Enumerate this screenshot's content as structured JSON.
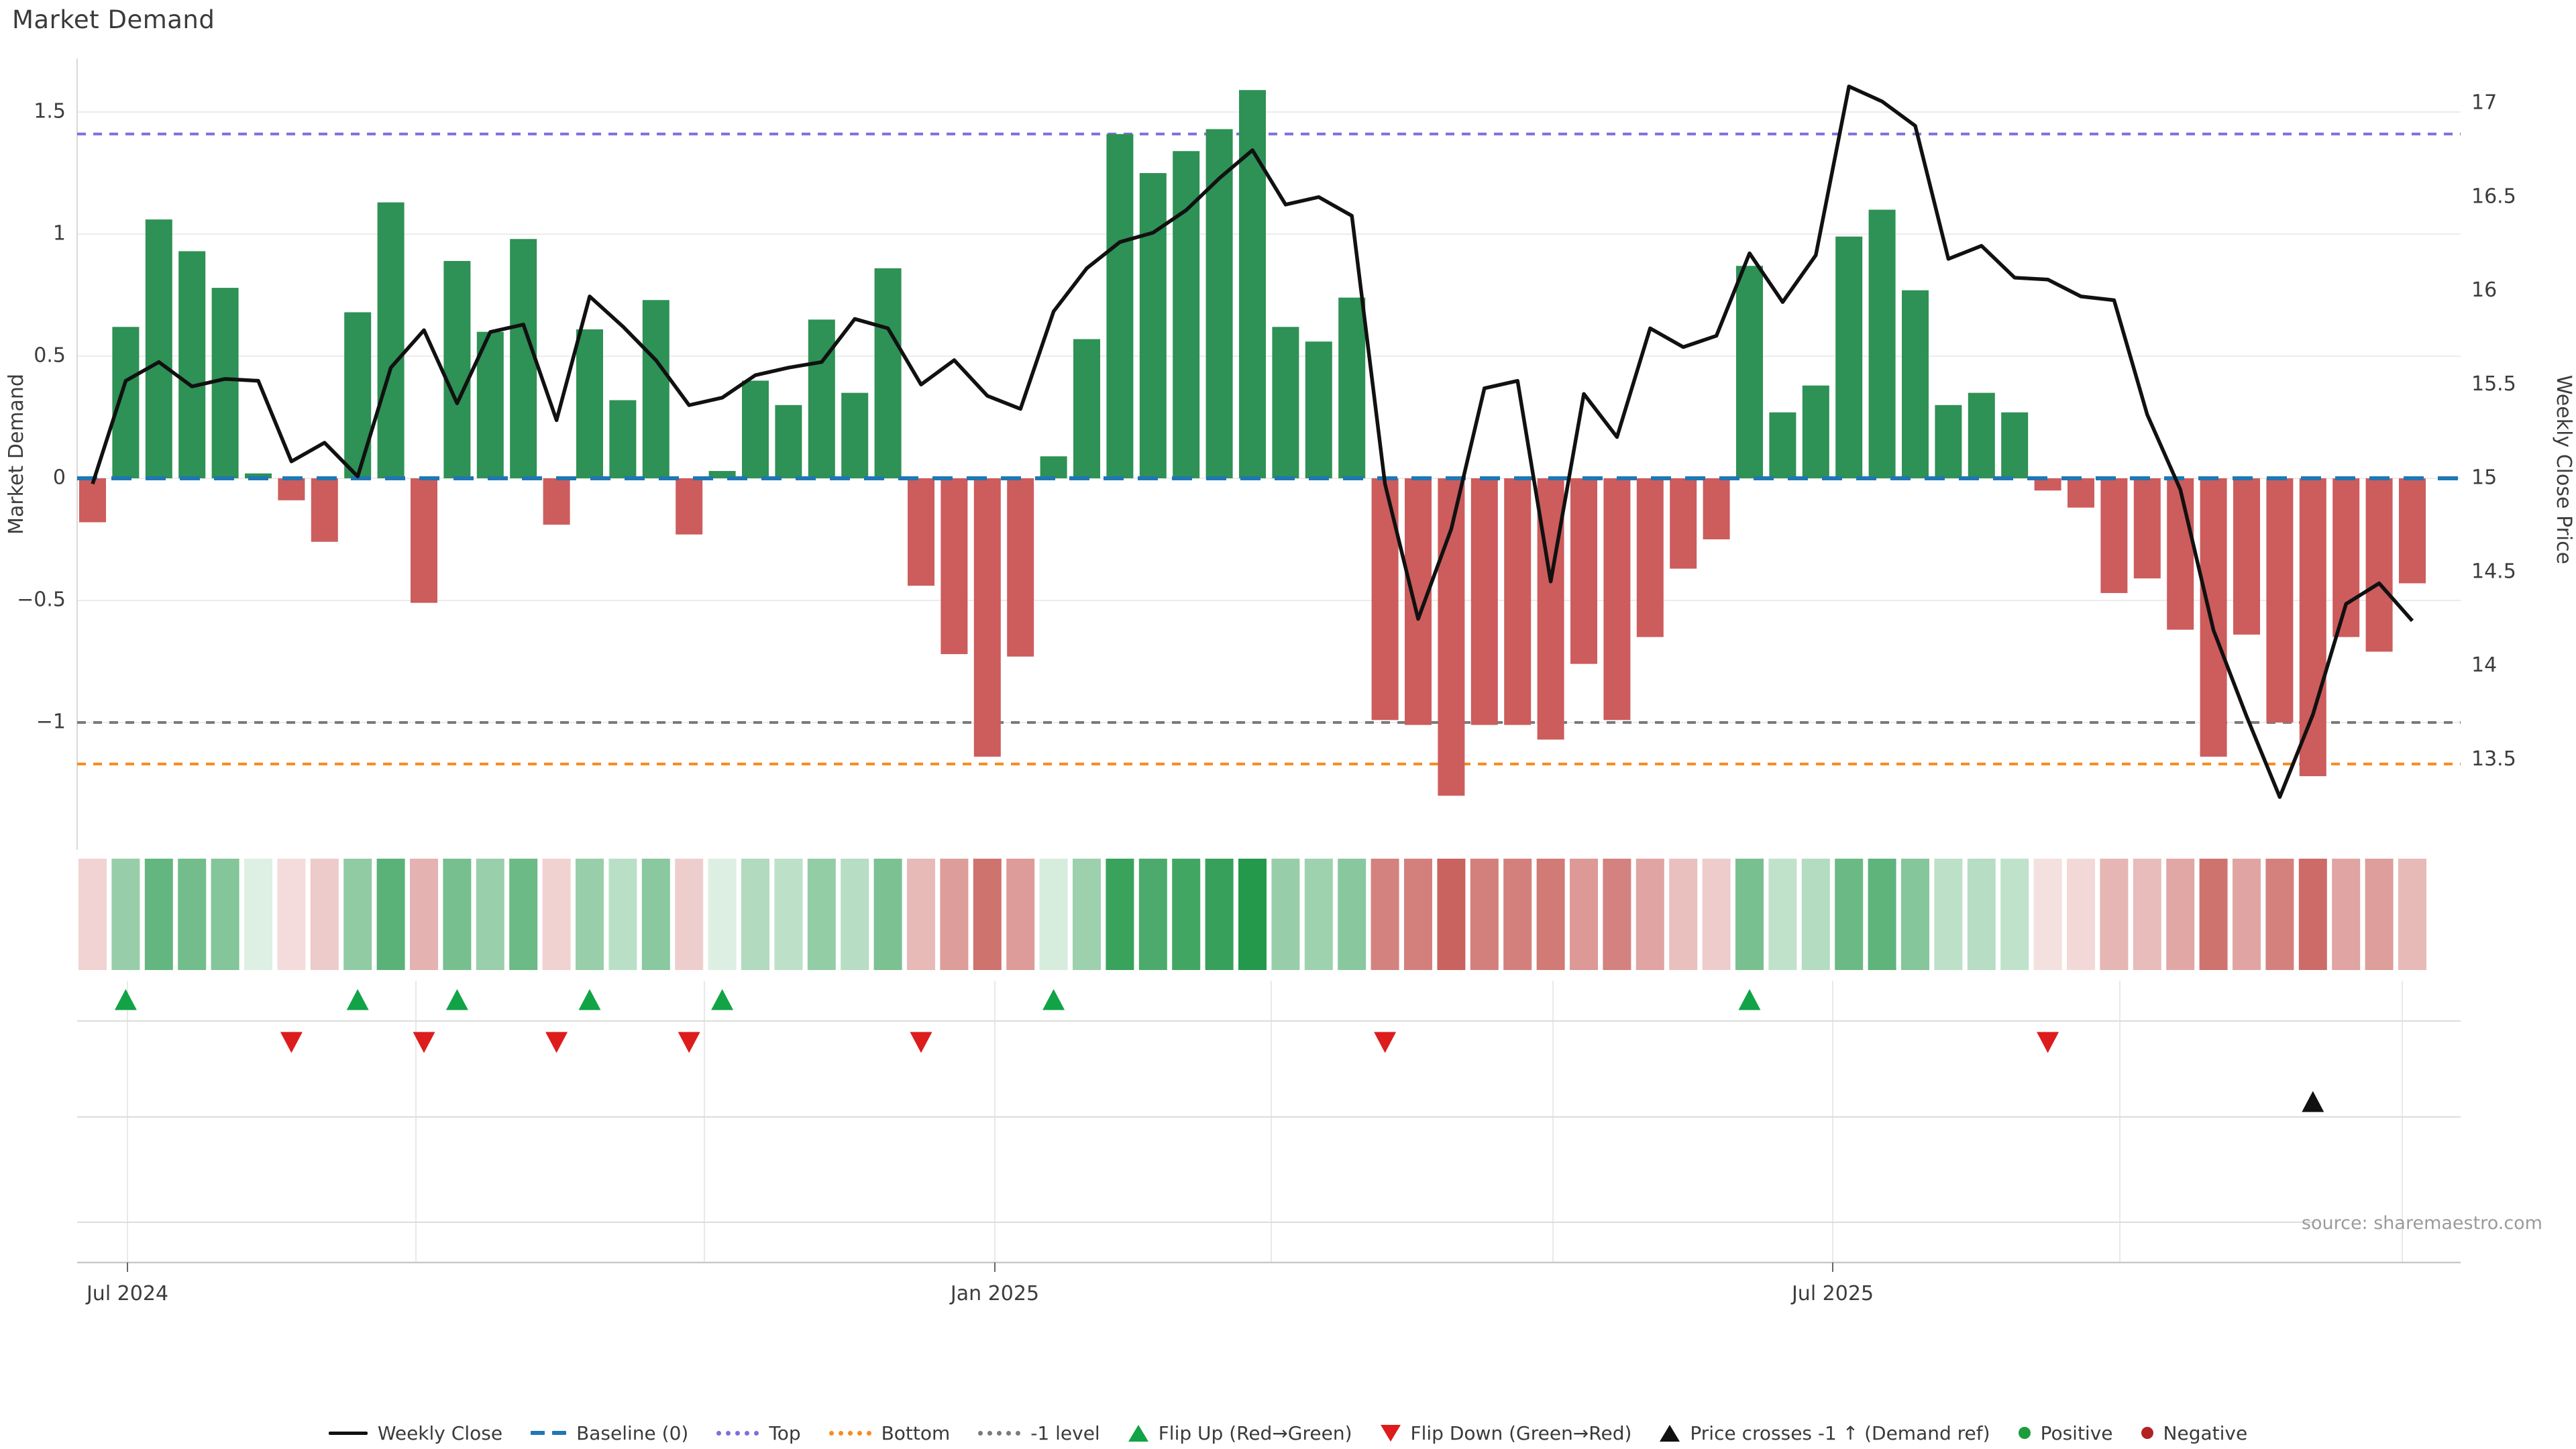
{
  "title": "Market Demand",
  "source_note": "source: sharemaestro.com",
  "axes": {
    "left": {
      "label": "Market Demand",
      "tick_labels": [
        "1.5",
        "1",
        "0.5",
        "0",
        "−0.5",
        "−1"
      ],
      "tick_values": [
        1.5,
        1,
        0.5,
        0,
        -0.5,
        -1
      ]
    },
    "right": {
      "label": "Weekly Close Price",
      "tick_labels": [
        "17",
        "16.5",
        "16",
        "15.5",
        "15",
        "14.5",
        "14",
        "13.5"
      ],
      "tick_values": [
        17,
        16.5,
        16,
        15.5,
        15,
        14.5,
        14,
        13.5
      ]
    },
    "x": {
      "tick_labels": [
        "Jul 2024",
        "Jan 2025",
        "Jul 2025"
      ]
    }
  },
  "legend": {
    "items": [
      {
        "label": "Weekly Close",
        "type": "line",
        "color": "#111111"
      },
      {
        "label": "Baseline (0)",
        "type": "dash",
        "color": "#1f77b4"
      },
      {
        "label": "Top",
        "type": "dots",
        "color": "#7b70dd"
      },
      {
        "label": "Bottom",
        "type": "dots",
        "color": "#f78c1c"
      },
      {
        "label": "-1 level",
        "type": "dots",
        "color": "#7a7a7a"
      },
      {
        "label": "Flip Up (Red→Green)",
        "type": "tri-up",
        "color": "#12a346"
      },
      {
        "label": "Flip Down (Green→Red)",
        "type": "tri-down",
        "color": "#dd1c1c"
      },
      {
        "label": "Price crosses -1 ↑ (Demand ref)",
        "type": "tri-up",
        "color": "#111111"
      },
      {
        "label": "Positive",
        "type": "dot",
        "color": "#1c9c3c"
      },
      {
        "label": "Negative",
        "type": "dot",
        "color": "#b22222"
      }
    ]
  },
  "chart_data": {
    "type": "combo",
    "weeks": 71,
    "x_tick_labels": [
      "Jul 2024",
      "Jan 2025",
      "Jul 2025"
    ],
    "grid": true,
    "legend_position": "bottom-center",
    "ylim_left": [
      -1.52,
      1.72
    ],
    "ylim_right": [
      13.02,
      17.24
    ],
    "series": [
      {
        "name": "Market Demand",
        "type": "bar",
        "axis": "left",
        "values": [
          -0.18,
          0.62,
          1.06,
          0.93,
          0.78,
          0.02,
          -0.09,
          -0.26,
          0.68,
          1.13,
          -0.51,
          0.89,
          0.6,
          0.98,
          -0.19,
          0.61,
          0.32,
          0.73,
          -0.23,
          0.03,
          0.4,
          0.3,
          0.65,
          0.35,
          0.86,
          -0.44,
          -0.72,
          -1.14,
          -0.73,
          0.09,
          0.57,
          1.41,
          1.25,
          1.34,
          1.43,
          1.59,
          0.62,
          0.56,
          0.74,
          -0.99,
          -1.01,
          -1.3,
          -1.01,
          -1.01,
          -1.07,
          -0.76,
          -0.99,
          -0.65,
          -0.37,
          -0.25,
          0.87,
          0.27,
          0.38,
          0.99,
          1.1,
          0.77,
          0.3,
          0.35,
          0.27,
          -0.05,
          -0.12,
          -0.47,
          -0.41,
          -0.62,
          -1.14,
          -0.64,
          -1.0,
          -1.22,
          -0.65,
          -0.71,
          -0.43
        ]
      },
      {
        "name": "Weekly Close",
        "type": "line",
        "axis": "right",
        "values": [
          14.97,
          15.52,
          15.62,
          15.49,
          15.53,
          15.52,
          15.09,
          15.19,
          15.01,
          15.59,
          15.79,
          15.4,
          15.78,
          15.82,
          15.31,
          15.97,
          15.81,
          15.63,
          15.39,
          15.43,
          15.55,
          15.59,
          15.62,
          15.85,
          15.8,
          15.5,
          15.63,
          15.44,
          15.37,
          15.89,
          16.12,
          16.26,
          16.31,
          16.43,
          16.6,
          16.75,
          16.46,
          16.5,
          16.4,
          14.97,
          14.25,
          14.73,
          15.48,
          15.52,
          14.45,
          15.45,
          15.22,
          15.8,
          15.7,
          15.76,
          16.2,
          15.94,
          16.19,
          17.09,
          17.01,
          16.88,
          16.17,
          16.24,
          16.07,
          16.06,
          15.97,
          15.95,
          15.34,
          14.94,
          14.19,
          13.73,
          13.3,
          13.74,
          14.33,
          14.44,
          14.24
        ]
      }
    ],
    "reference_lines": {
      "baseline": 0,
      "top": 1.41,
      "bottom": -1.17,
      "minus1": -1
    },
    "markers": {
      "flip_up_weeks": [
        2,
        9,
        12,
        16,
        20,
        30,
        51
      ],
      "flip_down_weeks": [
        7,
        11,
        15,
        19,
        26,
        40,
        60
      ],
      "price_cross_minus1_week": 68
    },
    "bar_colors": {
      "positive": "#2e9155",
      "negative": "#cd5c5c"
    },
    "heatmap": {
      "positive_base": "#23984a",
      "negative_base": "#bf4540",
      "max_abs": 1.6
    }
  }
}
